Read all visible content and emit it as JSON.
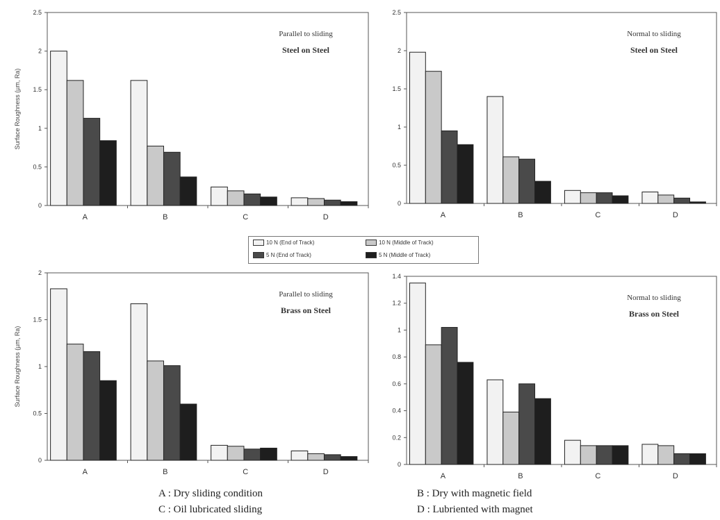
{
  "colors": {
    "s10_end": "#f2f2f2",
    "s10_mid": "#c9c9c9",
    "s5_end": "#4a4a4a",
    "s5_mid": "#1e1e1e"
  },
  "legend": {
    "items": [
      {
        "label": "10 N (End of Track)",
        "key": "s10_end"
      },
      {
        "label": "10 N (Middle of Track)",
        "key": "s10_mid"
      },
      {
        "label": "5  N (End of Track)",
        "key": "s5_end"
      },
      {
        "label": "5  N (Middle of Track)",
        "key": "s5_mid"
      }
    ]
  },
  "captions": {
    "a": "A : Dry sliding condition",
    "b": "B : Dry with magnetic field",
    "c": "C : Oil lubricated  sliding",
    "d": "D : Lubriented  with magnet"
  },
  "chart_data": [
    {
      "type": "bar",
      "annotation_line1": "Parallel to sliding",
      "annotation_line2": "Steel on Steel",
      "ylabel": "Surface Roughness (µm, Ra)",
      "ylim": [
        0,
        2.5
      ],
      "yticks": [
        "0",
        "0.5",
        "1",
        "1.5",
        "2",
        "2.5"
      ],
      "yticks_values": [
        0,
        0.5,
        1,
        1.5,
        2,
        2.5
      ],
      "categories": [
        "A",
        "B",
        "C",
        "D"
      ],
      "series": [
        {
          "values": [
            2.0,
            1.62,
            0.24,
            0.1
          ]
        },
        {
          "values": [
            1.62,
            0.77,
            0.19,
            0.09
          ]
        },
        {
          "values": [
            1.13,
            0.69,
            0.15,
            0.07
          ]
        },
        {
          "values": [
            0.84,
            0.37,
            0.11,
            0.05
          ]
        }
      ]
    },
    {
      "type": "bar",
      "annotation_line1": "Normal to sliding",
      "annotation_line2": "Steel on Steel",
      "ylabel": "",
      "ylim": [
        0,
        2.5
      ],
      "yticks": [
        "0",
        "0.5",
        "1",
        "1.5",
        "2",
        "2.5"
      ],
      "yticks_values": [
        0,
        0.5,
        1,
        1.5,
        2,
        2.5
      ],
      "categories": [
        "A",
        "B",
        "C",
        "D"
      ],
      "series": [
        {
          "values": [
            1.98,
            1.4,
            0.17,
            0.15
          ]
        },
        {
          "values": [
            1.73,
            0.61,
            0.14,
            0.11
          ]
        },
        {
          "values": [
            0.95,
            0.58,
            0.14,
            0.07
          ]
        },
        {
          "values": [
            0.77,
            0.29,
            0.1,
            0.02
          ]
        }
      ]
    },
    {
      "type": "bar",
      "annotation_line1": "Parallel to sliding",
      "annotation_line2": "Brass on Steel",
      "ylabel": "Surface Roughness (µm, Ra)",
      "ylim": [
        0,
        2
      ],
      "yticks": [
        "0",
        "0.5",
        "1",
        "1.5",
        "2"
      ],
      "yticks_values": [
        0,
        0.5,
        1,
        1.5,
        2
      ],
      "categories": [
        "A",
        "B",
        "C",
        "D"
      ],
      "series": [
        {
          "values": [
            1.83,
            1.67,
            0.16,
            0.1
          ]
        },
        {
          "values": [
            1.24,
            1.06,
            0.15,
            0.07
          ]
        },
        {
          "values": [
            1.16,
            1.01,
            0.12,
            0.06
          ]
        },
        {
          "values": [
            0.85,
            0.6,
            0.13,
            0.04
          ]
        }
      ]
    },
    {
      "type": "bar",
      "annotation_line1": "Normal to sliding",
      "annotation_line2": "Brass on Steel",
      "ylabel": "",
      "ylim": [
        0,
        1.4
      ],
      "yticks": [
        "0",
        "0.2",
        "0.4",
        "0.6",
        "0.8",
        "1",
        "1.2",
        "1.4"
      ],
      "yticks_values": [
        0,
        0.2,
        0.4,
        0.6,
        0.8,
        1,
        1.2,
        1.4
      ],
      "categories": [
        "A",
        "B",
        "C",
        "D"
      ],
      "series": [
        {
          "values": [
            1.35,
            0.63,
            0.18,
            0.15
          ]
        },
        {
          "values": [
            0.89,
            0.39,
            0.14,
            0.14
          ]
        },
        {
          "values": [
            1.02,
            0.6,
            0.14,
            0.08
          ]
        },
        {
          "values": [
            0.76,
            0.49,
            0.14,
            0.08
          ]
        }
      ]
    }
  ]
}
